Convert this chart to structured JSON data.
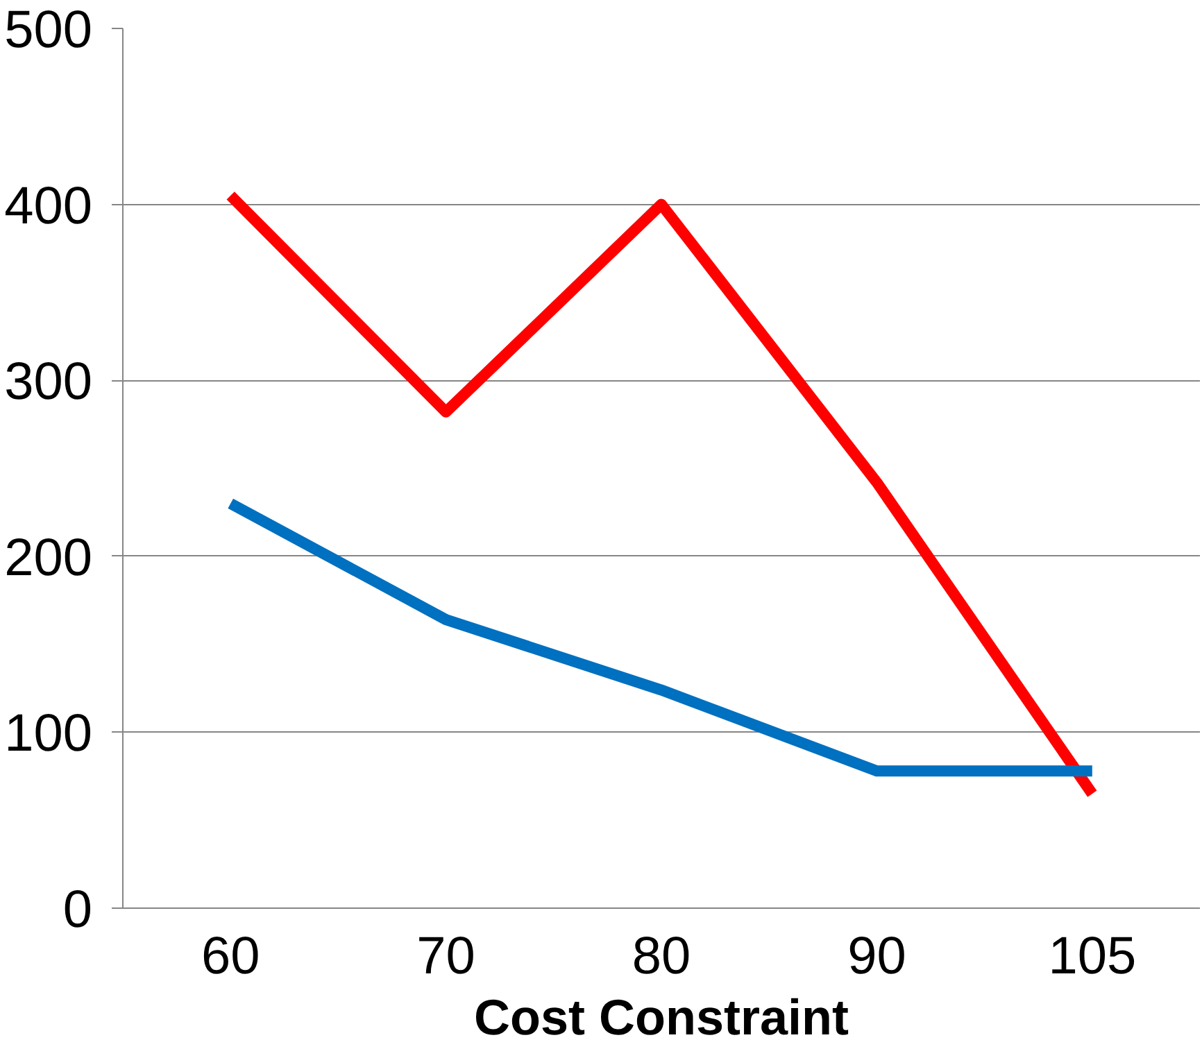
{
  "chart_data": {
    "type": "line",
    "xlabel": "Cost Constraint",
    "categories": [
      "60",
      "70",
      "80",
      "90",
      "105"
    ],
    "series": [
      {
        "color": "#ff0000",
        "values": [
          405,
          282,
          400,
          242,
          65
        ]
      },
      {
        "color": "#0070c0",
        "values": [
          230,
          164,
          124,
          78,
          78
        ]
      }
    ],
    "ylim": [
      0,
      500
    ],
    "yticks": [
      0,
      100,
      200,
      300,
      400,
      500
    ],
    "grid": "y",
    "marker": "none",
    "line_style": "solid"
  }
}
